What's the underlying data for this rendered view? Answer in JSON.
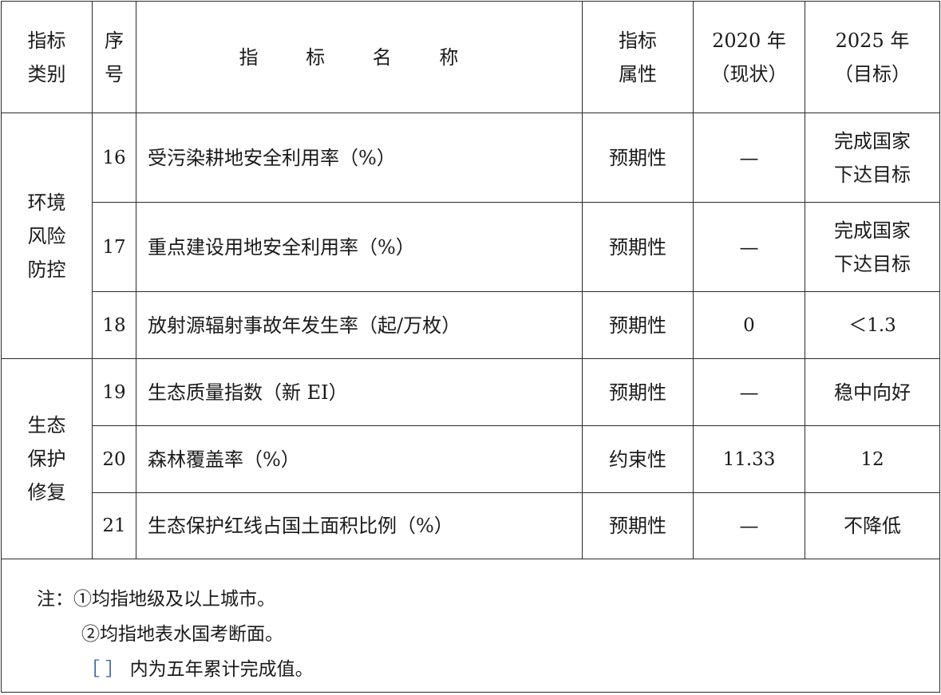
{
  "header": {
    "category": [
      "指标",
      "类别"
    ],
    "serial": [
      "序",
      "号"
    ],
    "name": "指 标 名 称",
    "attribute": [
      "指标",
      "属性"
    ],
    "y2020": [
      "2020 年",
      "（现状）"
    ],
    "y2025": [
      "2025 年",
      "（目标）"
    ]
  },
  "groups": [
    {
      "label": [
        "环境",
        "风险",
        "防控"
      ]
    },
    {
      "label": [
        "生态",
        "保护",
        "修复"
      ]
    }
  ],
  "rows": [
    {
      "no": "16",
      "name": "受污染耕地安全利用率（%）",
      "attr": "预期性",
      "v2020": "—",
      "v2025": [
        "完成国家",
        "下达目标"
      ]
    },
    {
      "no": "17",
      "name": "重点建设用地安全利用率（%）",
      "attr": "预期性",
      "v2020": "—",
      "v2025": [
        "完成国家",
        "下达目标"
      ]
    },
    {
      "no": "18",
      "name": "放射源辐射事故年发生率（起/万枚）",
      "attr": "预期性",
      "v2020": "0",
      "v2025": [
        "＜1.3"
      ]
    },
    {
      "no": "19",
      "name": "生态质量指数（新 EI）",
      "attr": "预期性",
      "v2020": "—",
      "v2025": [
        "稳中向好"
      ]
    },
    {
      "no": "20",
      "name": "森林覆盖率（%）",
      "attr": "约束性",
      "v2020": "11.33",
      "v2025": [
        "12"
      ]
    },
    {
      "no": "21",
      "name": "生态保护红线占国土面积比例（%）",
      "attr": "预期性",
      "v2020": "—",
      "v2025": [
        "不降低"
      ]
    }
  ],
  "notes": {
    "prefix": "注：",
    "items": [
      "①均指地级及以上城市。",
      "②均指地表水国考断面。"
    ],
    "bracket": "［ ］",
    "bracket_text": " 内为五年累计完成值。"
  }
}
